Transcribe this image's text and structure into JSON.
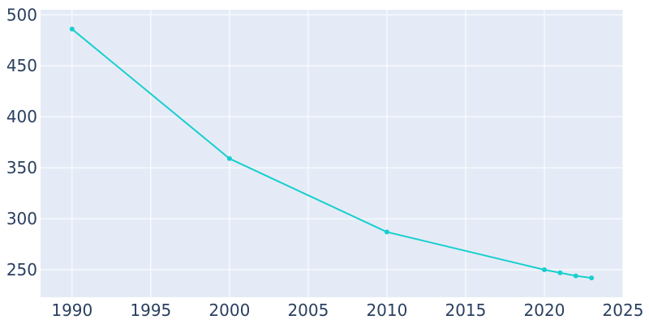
{
  "chart_data": {
    "type": "line",
    "title": "",
    "xlabel": "",
    "ylabel": "",
    "x": [
      1990,
      2000,
      2010,
      2020,
      2021,
      2022,
      2023
    ],
    "series": [
      {
        "values": [
          486,
          359,
          287,
          250,
          247,
          244,
          242
        ],
        "color": "#17cfcf"
      }
    ],
    "xlim": [
      1988,
      2025
    ],
    "ylim": [
      223,
      505
    ],
    "xticks": [
      1990,
      1995,
      2000,
      2005,
      2010,
      2015,
      2020,
      2025
    ],
    "yticks": [
      250,
      300,
      350,
      400,
      450,
      500
    ],
    "grid": true,
    "legend": "none",
    "colors": {
      "plot_background": "#e5ebf6",
      "grid": "#ffffff",
      "tick_text": "#2a3f5f",
      "line": "#17cfcf"
    }
  }
}
